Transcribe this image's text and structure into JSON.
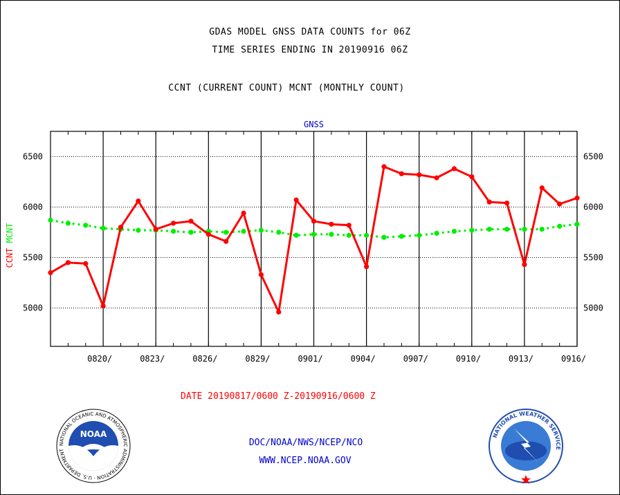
{
  "header": {
    "title1": "GDAS MODEL GNSS DATA COUNTS for 06Z",
    "title2": "TIME SERIES ENDING IN 20190916 06Z",
    "subtitle": "CCNT (CURRENT COUNT) MCNT (MONTHLY COUNT)"
  },
  "footer": {
    "date_range": "DATE 20190817/0600 Z-20190916/0600 Z",
    "org": "DOC/NOAA/NWS/NCEP/NCO",
    "url": "WWW.NCEP.NOAA.GOV"
  },
  "logos": {
    "noaa_text": "NOAA",
    "noaa_ring": "NATIONAL OCEANIC AND ATMOSPHERIC ADMINISTRATION · U.S. DEPARTMENT OF COMMERCE ·",
    "nws_ring": "NATIONAL WEATHER SERVICE"
  },
  "chart_data": {
    "type": "line",
    "title": "GNSS",
    "ylabel_left": [
      "CCNT",
      "MCNT"
    ],
    "ylim": [
      4620,
      6750
    ],
    "yticks": [
      5000,
      5500,
      6000,
      6500
    ],
    "xticks": [
      "0820/",
      "0823/",
      "0826/",
      "0829/",
      "0901/",
      "0904/",
      "0907/",
      "0910/",
      "0913/",
      "0916/"
    ],
    "x": [
      "0817",
      "0818",
      "0819",
      "0820",
      "0821",
      "0822",
      "0823",
      "0824",
      "0825",
      "0826",
      "0827",
      "0828",
      "0829",
      "0830",
      "0831",
      "0901",
      "0902",
      "0903",
      "0904",
      "0905",
      "0906",
      "0907",
      "0908",
      "0909",
      "0910",
      "0911",
      "0912",
      "0913",
      "0914",
      "0915",
      "0916"
    ],
    "grid": true,
    "series": [
      {
        "name": "CCNT",
        "color": "#ff0000",
        "style": "solid",
        "values": [
          5350,
          5450,
          5440,
          5020,
          5800,
          6060,
          5780,
          5840,
          5860,
          5730,
          5660,
          5940,
          5330,
          4960,
          6070,
          5860,
          5830,
          5820,
          5410,
          6400,
          6330,
          6320,
          6290,
          6380,
          6300,
          6050,
          6040,
          5430,
          6190,
          6030,
          6090
        ]
      },
      {
        "name": "MCNT",
        "color": "#00ee00",
        "style": "dotted",
        "values": [
          5870,
          5840,
          5820,
          5790,
          5780,
          5770,
          5770,
          5760,
          5750,
          5760,
          5750,
          5760,
          5770,
          5750,
          5720,
          5730,
          5730,
          5720,
          5720,
          5700,
          5710,
          5720,
          5740,
          5760,
          5770,
          5780,
          5780,
          5780,
          5780,
          5810,
          5830
        ]
      }
    ]
  }
}
